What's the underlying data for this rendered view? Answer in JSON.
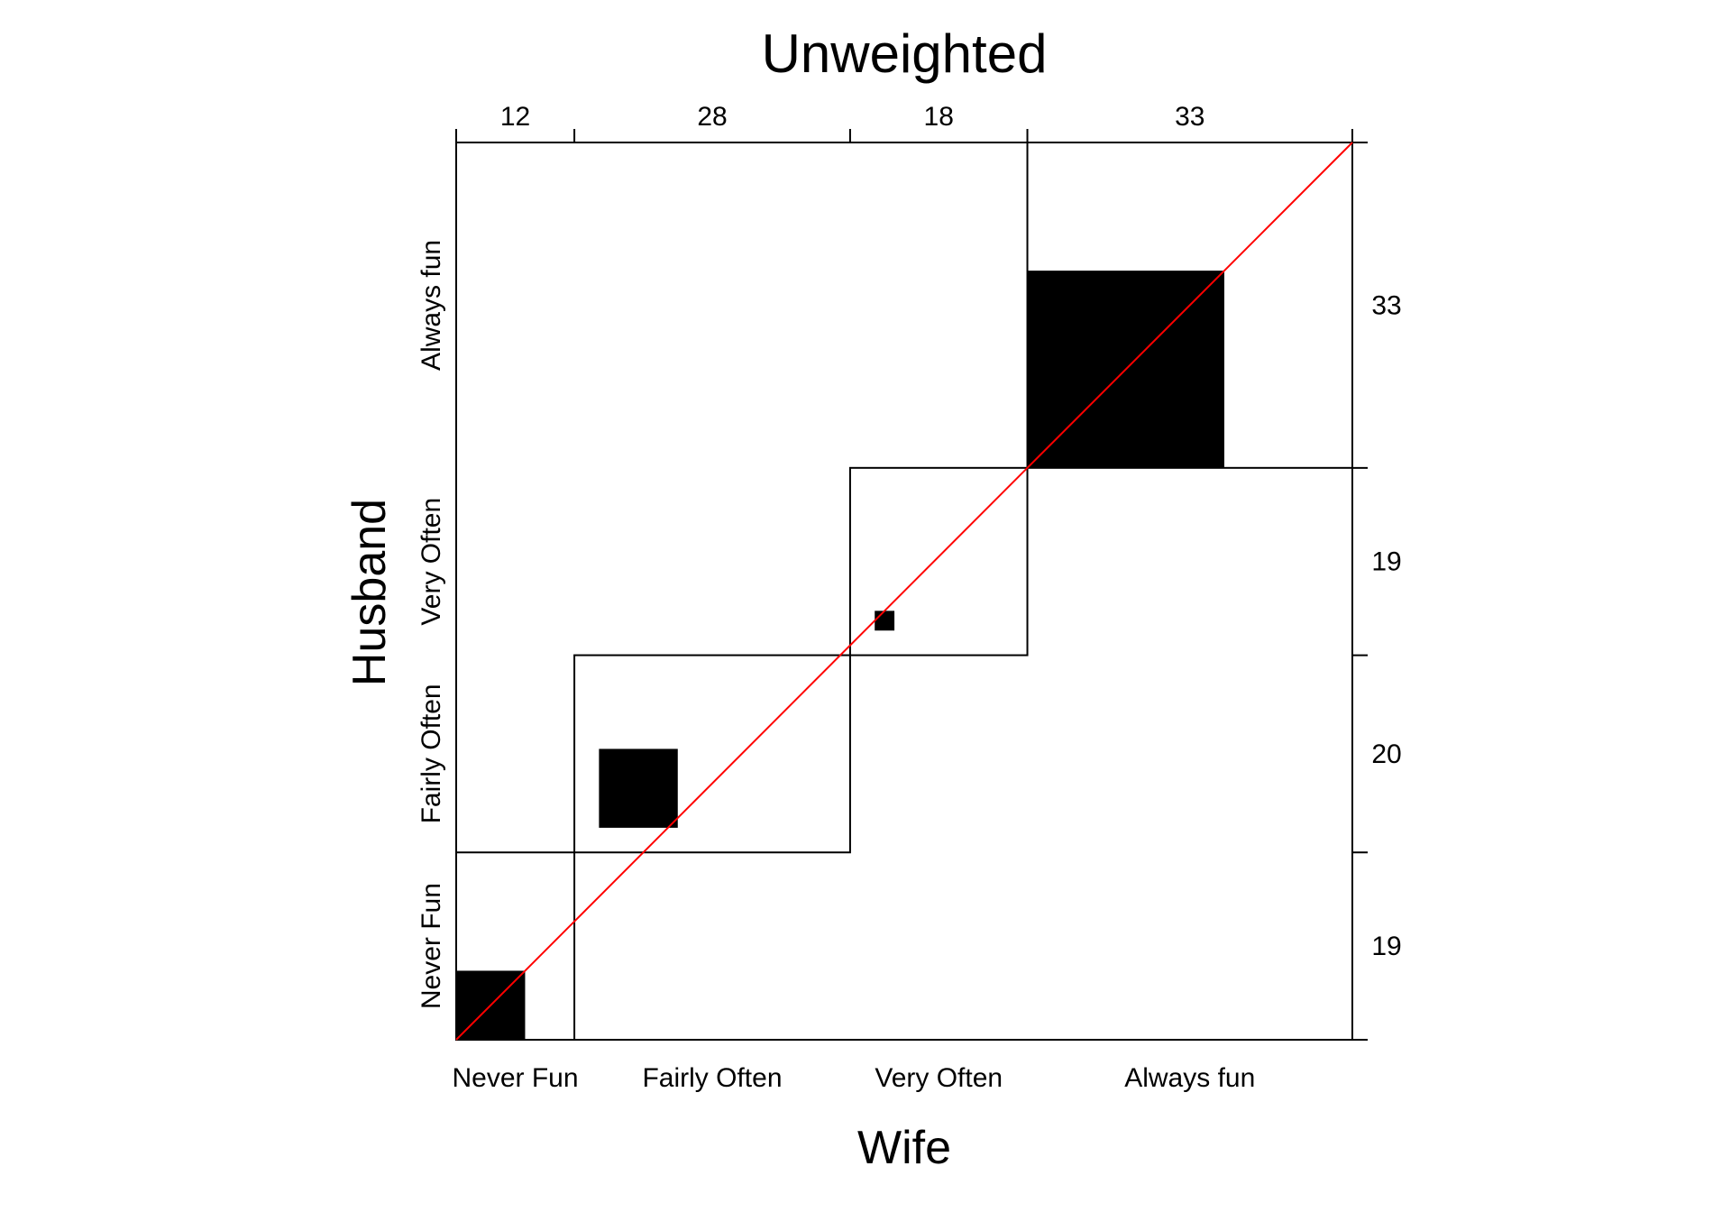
{
  "chart_data": {
    "type": "agreement",
    "title": "Unweighted",
    "xlabel": "Wife",
    "ylabel": "Husband",
    "categories": [
      "Never Fun",
      "Fairly Often",
      "Very Often",
      "Always fun"
    ],
    "col_totals": [
      12,
      28,
      18,
      33
    ],
    "row_totals": [
      19,
      20,
      19,
      33
    ],
    "diagonal_agreement": [
      7,
      8,
      2,
      20
    ],
    "grand_total": 91,
    "reference_line": "diagonal",
    "colors": {
      "agreement_fill": "#000000",
      "reference_line": "#ff0000",
      "frame": "#000000"
    }
  }
}
